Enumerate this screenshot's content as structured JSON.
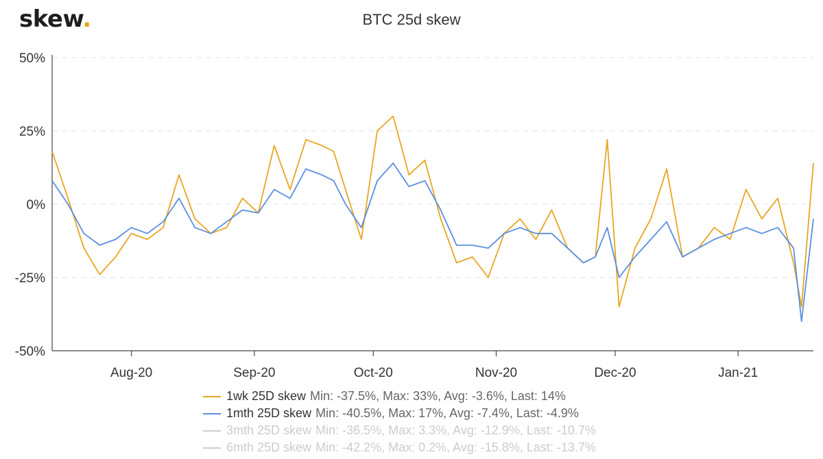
{
  "brand": {
    "name": "skew",
    "dot": "."
  },
  "chart_data": {
    "type": "line",
    "title": "BTC 25d skew",
    "xlabel": "",
    "ylabel": "",
    "ylim": [
      -50,
      50
    ],
    "y_ticks": [
      "50%",
      "25%",
      "0%",
      "-25%",
      "-50%"
    ],
    "x_ticks": [
      "Aug-20",
      "Sep-20",
      "Oct-20",
      "Nov-20",
      "Dec-20",
      "Jan-21"
    ],
    "x_range": [
      "2020-07-12",
      "2021-01-20"
    ],
    "grid": true,
    "legend_position": "bottom",
    "series": [
      {
        "name": "1wk 25D skew",
        "stats": "Min: -37.5%, Max: 33%, Avg: -3.6%, Last: 14%",
        "color": "#e8a520",
        "visible": true,
        "x": [
          "2020-07-12",
          "2020-07-16",
          "2020-07-20",
          "2020-07-24",
          "2020-07-28",
          "2020-08-01",
          "2020-08-05",
          "2020-08-09",
          "2020-08-13",
          "2020-08-17",
          "2020-08-21",
          "2020-08-25",
          "2020-08-29",
          "2020-09-02",
          "2020-09-06",
          "2020-09-10",
          "2020-09-14",
          "2020-09-18",
          "2020-09-21",
          "2020-09-24",
          "2020-09-28",
          "2020-10-02",
          "2020-10-06",
          "2020-10-10",
          "2020-10-14",
          "2020-10-18",
          "2020-10-22",
          "2020-10-26",
          "2020-10-30",
          "2020-11-03",
          "2020-11-07",
          "2020-11-11",
          "2020-11-15",
          "2020-11-19",
          "2020-11-23",
          "2020-11-26",
          "2020-11-29",
          "2020-12-02",
          "2020-12-06",
          "2020-12-10",
          "2020-12-14",
          "2020-12-18",
          "2020-12-22",
          "2020-12-26",
          "2020-12-30",
          "2021-01-03",
          "2021-01-07",
          "2021-01-11",
          "2021-01-15",
          "2021-01-17",
          "2021-01-20"
        ],
        "values": [
          18,
          2,
          -15,
          -24,
          -18,
          -10,
          -12,
          -8,
          10,
          -5,
          -10,
          -8,
          2,
          -3,
          20,
          5,
          22,
          20,
          18,
          5,
          -12,
          25,
          30,
          10,
          15,
          -5,
          -20,
          -18,
          -25,
          -10,
          -5,
          -12,
          -2,
          -15,
          -20,
          -18,
          22,
          -35,
          -15,
          -5,
          12,
          -18,
          -15,
          -8,
          -12,
          5,
          -5,
          2,
          -20,
          -35,
          14
        ]
      },
      {
        "name": "1mth 25D skew",
        "stats": "Min: -40.5%, Max: 17%, Avg: -7.4%, Last: -4.9%",
        "color": "#5a8ee0",
        "visible": true,
        "x": [
          "2020-07-12",
          "2020-07-16",
          "2020-07-20",
          "2020-07-24",
          "2020-07-28",
          "2020-08-01",
          "2020-08-05",
          "2020-08-09",
          "2020-08-13",
          "2020-08-17",
          "2020-08-21",
          "2020-08-25",
          "2020-08-29",
          "2020-09-02",
          "2020-09-06",
          "2020-09-10",
          "2020-09-14",
          "2020-09-18",
          "2020-09-21",
          "2020-09-24",
          "2020-09-28",
          "2020-10-02",
          "2020-10-06",
          "2020-10-10",
          "2020-10-14",
          "2020-10-18",
          "2020-10-22",
          "2020-10-26",
          "2020-10-30",
          "2020-11-03",
          "2020-11-07",
          "2020-11-11",
          "2020-11-15",
          "2020-11-19",
          "2020-11-23",
          "2020-11-26",
          "2020-11-29",
          "2020-12-02",
          "2020-12-06",
          "2020-12-10",
          "2020-12-14",
          "2020-12-18",
          "2020-12-22",
          "2020-12-26",
          "2020-12-30",
          "2021-01-03",
          "2021-01-07",
          "2021-01-11",
          "2021-01-15",
          "2021-01-17",
          "2021-01-20"
        ],
        "values": [
          8,
          0,
          -10,
          -14,
          -12,
          -8,
          -10,
          -6,
          2,
          -8,
          -10,
          -6,
          -2,
          -3,
          5,
          2,
          12,
          10,
          8,
          0,
          -8,
          8,
          14,
          6,
          8,
          -2,
          -14,
          -14,
          -15,
          -10,
          -8,
          -10,
          -10,
          -15,
          -20,
          -18,
          -8,
          -25,
          -18,
          -12,
          -6,
          -18,
          -15,
          -12,
          -10,
          -8,
          -10,
          -8,
          -15,
          -40,
          -5
        ]
      },
      {
        "name": "3mth 25D skew",
        "stats": "Min: -36.5%, Max: 3.3%, Avg: -12.9%, Last: -10.7%",
        "color": "#cccccc",
        "visible": false,
        "x": [],
        "values": []
      },
      {
        "name": "6mth 25D skew",
        "stats": "Min: -42.2%, Max: 0.2%, Avg: -15.8%, Last: -13.7%",
        "color": "#cccccc",
        "visible": false,
        "x": [],
        "values": []
      }
    ]
  }
}
